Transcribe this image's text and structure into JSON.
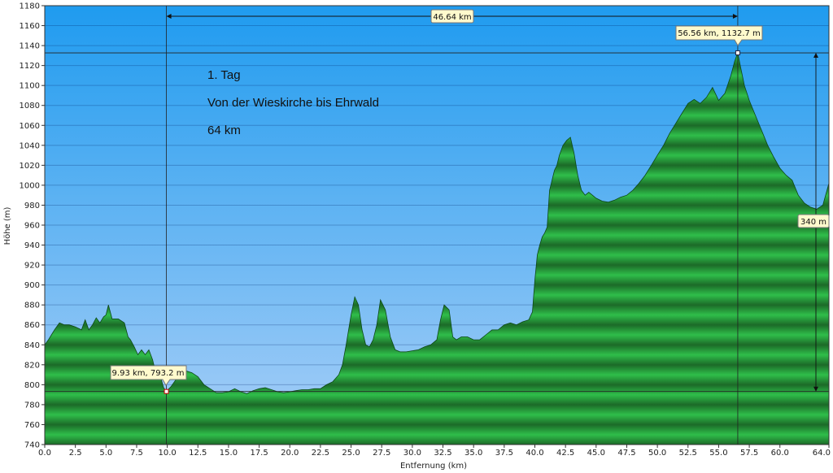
{
  "chart_data": {
    "type": "area",
    "xlabel": "Entfernung   (km)",
    "ylabel": "Höhe (m)",
    "xlim": [
      0,
      64
    ],
    "ylim": [
      740,
      1180
    ],
    "grid": true,
    "x_ticks": [
      0,
      2.5,
      5,
      7.5,
      10,
      12.5,
      15,
      17.5,
      20,
      22.5,
      25,
      27.5,
      30,
      32.5,
      35,
      37.5,
      40,
      42.5,
      45,
      47.5,
      50,
      52.5,
      55,
      57.5,
      60,
      64
    ],
    "x_tick_labels": [
      "0.0",
      "2.5",
      "5.0",
      "7.5",
      "10.0",
      "12.5",
      "15.0",
      "17.5",
      "20.0",
      "22.5",
      "25.0",
      "27.5",
      "30.0",
      "32.5",
      "35.0",
      "37.5",
      "40.0",
      "42.5",
      "45.0",
      "47.5",
      "50.0",
      "52.5",
      "55.0",
      "57.5",
      "60.0",
      "64.0"
    ],
    "y_ticks": [
      740,
      760,
      780,
      800,
      820,
      840,
      860,
      880,
      900,
      920,
      940,
      960,
      980,
      1000,
      1020,
      1040,
      1060,
      1080,
      1100,
      1120,
      1140,
      1160,
      1180
    ],
    "series": [
      {
        "x": [
          0,
          0.3,
          0.8,
          1.2,
          1.6,
          2.0,
          2.5,
          3.0,
          3.3,
          3.6,
          3.9,
          4.2,
          4.5,
          4.8,
          5.0,
          5.2,
          5.5,
          6.0,
          6.5,
          6.8,
          7.0,
          7.3,
          7.6,
          7.9,
          8.2,
          8.5,
          8.8,
          9.1,
          9.4,
          9.7,
          9.93,
          10.3,
          10.7,
          11.0,
          11.5,
          12.0,
          12.5,
          13.0,
          13.5,
          14.0,
          14.5,
          15.0,
          15.5,
          16.0,
          16.5,
          17.0,
          17.5,
          18.0,
          18.5,
          19.0,
          19.5,
          20.0,
          20.5,
          21.0,
          21.5,
          22.0,
          22.5,
          23.0,
          23.5,
          24.0,
          24.3,
          24.6,
          25.0,
          25.3,
          25.6,
          25.9,
          26.2,
          26.5,
          26.8,
          27.1,
          27.4,
          27.8,
          28.2,
          28.6,
          29.0,
          29.5,
          30.0,
          30.5,
          31.0,
          31.5,
          32.0,
          32.3,
          32.6,
          33.0,
          33.3,
          33.6,
          34.0,
          34.5,
          35.0,
          35.5,
          36.0,
          36.5,
          37.0,
          37.5,
          38.0,
          38.5,
          39.0,
          39.5,
          39.8,
          40.0,
          40.2,
          40.4,
          40.6,
          40.8,
          41.0,
          41.2,
          41.4,
          41.6,
          41.8,
          42.0,
          42.3,
          42.6,
          42.9,
          43.2,
          43.5,
          43.8,
          44.1,
          44.4,
          44.7,
          45.0,
          45.5,
          46.0,
          46.5,
          47.0,
          47.5,
          48.0,
          48.5,
          49.0,
          49.5,
          50.0,
          50.5,
          51.0,
          51.5,
          52.0,
          52.5,
          53.0,
          53.5,
          54.0,
          54.5,
          55.0,
          55.5,
          56.0,
          56.3,
          56.56,
          56.8,
          57.1,
          57.5,
          58.0,
          58.5,
          59.0,
          59.5,
          60.0,
          60.5,
          61.0,
          61.5,
          62.0,
          62.5,
          63.0,
          63.5,
          64.0
        ],
        "values": [
          840,
          845,
          855,
          862,
          860,
          860,
          858,
          855,
          865,
          855,
          860,
          867,
          862,
          868,
          870,
          880,
          866,
          866,
          862,
          848,
          845,
          838,
          830,
          835,
          830,
          835,
          825,
          810,
          810,
          797,
          793.2,
          798,
          805,
          812,
          814,
          812,
          808,
          800,
          796,
          792,
          792,
          793,
          796,
          793,
          791,
          794,
          796,
          797,
          795,
          793,
          792,
          793,
          794,
          795,
          795,
          796,
          796,
          800,
          803,
          810,
          820,
          840,
          870,
          888,
          880,
          855,
          840,
          838,
          845,
          860,
          885,
          875,
          848,
          835,
          833,
          833,
          834,
          835,
          838,
          840,
          845,
          865,
          880,
          875,
          848,
          845,
          848,
          848,
          845,
          845,
          850,
          855,
          855,
          860,
          862,
          860,
          863,
          865,
          873,
          905,
          930,
          940,
          948,
          952,
          958,
          995,
          1005,
          1015,
          1020,
          1030,
          1040,
          1045,
          1048,
          1032,
          1010,
          995,
          990,
          993,
          990,
          987,
          984,
          983,
          985,
          988,
          990,
          995,
          1002,
          1010,
          1020,
          1030,
          1040,
          1052,
          1062,
          1072,
          1082,
          1086,
          1082,
          1088,
          1098,
          1085,
          1092,
          1110,
          1124,
          1132.7,
          1118,
          1100,
          1085,
          1070,
          1055,
          1040,
          1028,
          1017,
          1010,
          1005,
          990,
          982,
          978,
          976,
          980,
          1002
        ]
      }
    ],
    "markers": [
      {
        "x": 9.93,
        "y": 793.2,
        "label": "9.93 km, 793.2 m"
      },
      {
        "x": 56.56,
        "y": 1132.7,
        "label": "56.56 km, 1132.7 m"
      }
    ],
    "measure_distance": "46.64 km",
    "measure_height": "340 m",
    "annotations": [
      "1. Tag",
      "Von der Wieskirche bis Ehrwald",
      "64 km"
    ]
  }
}
